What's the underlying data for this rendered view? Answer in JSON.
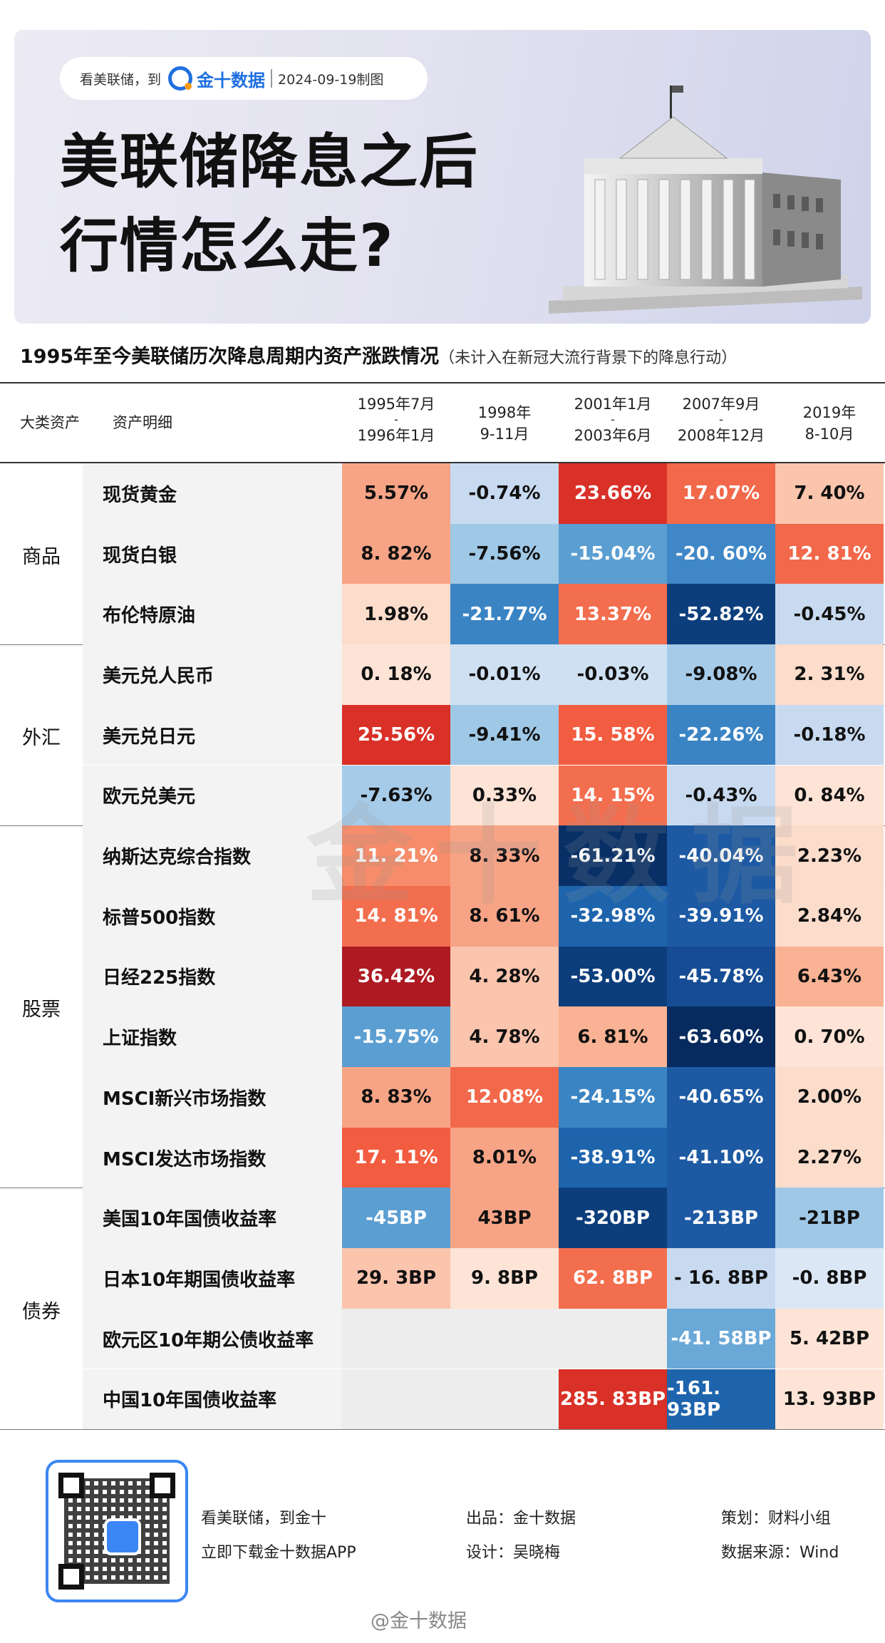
{
  "header": {
    "pill_text": "看美联储，到",
    "brand": "金十数据",
    "date": "2024-09-19制图",
    "title_line1": "美联储降息之后",
    "title_line2": "行情怎么走?"
  },
  "subtitle": {
    "main": "1995年至今美联储历次降息周期内资产涨跌情况",
    "note": "（未计入在新冠大流行背景下的降息行动）"
  },
  "table_headers": {
    "asset_class": "大类资产",
    "asset_detail": "资产明细",
    "periods": [
      {
        "top": "1995年7月",
        "dash": "-",
        "bottom": "1996年1月"
      },
      {
        "top": "1998年",
        "dash": "",
        "bottom": "9-11月"
      },
      {
        "top": "2001年1月",
        "dash": "-",
        "bottom": "2003年6月"
      },
      {
        "top": "2007年9月",
        "dash": "-",
        "bottom": "2008年12月"
      },
      {
        "top": "2019年",
        "dash": "",
        "bottom": "8-10月"
      }
    ]
  },
  "chart_data": {
    "type": "table",
    "title": "1995年至今美联储历次降息周期内资产涨跌情况",
    "columns": [
      "1995年7月-1996年1月",
      "1998年9-11月",
      "2001年1月-2003年6月",
      "2007年9月-2008年12月",
      "2019年8-10月"
    ],
    "groups": [
      {
        "category": "商品",
        "rows": [
          {
            "label": "现货黄金",
            "values": [
              "5.57%",
              "-0.74%",
              "23.66%",
              "17.07%",
              "7. 40%"
            ],
            "colors": [
              "#f7a486",
              "#c8daf0",
              "#d93027",
              "#f2684a",
              "#fbc4ad"
            ]
          },
          {
            "label": "现货白银",
            "values": [
              "8. 82%",
              "-7.56%",
              "-15.04%",
              "-20. 60%",
              "12. 81%"
            ],
            "colors": [
              "#f7a486",
              "#9fc8e6",
              "#5b9ed2",
              "#3f87c7",
              "#f2684a"
            ]
          },
          {
            "label": "布伦特原油",
            "values": [
              "1.98%",
              "-21.77%",
              "13.37%",
              "-52.82%",
              "-0.45%"
            ],
            "colors": [
              "#fcdccb",
              "#3a84c4",
              "#f36e4e",
              "#0d3e7c",
              "#c8daf0"
            ]
          }
        ]
      },
      {
        "category": "外汇",
        "rows": [
          {
            "label": "美元兑人民币",
            "values": [
              "0. 18%",
              "-0.01%",
              "-0.03%",
              "-9.08%",
              "2. 31%"
            ],
            "colors": [
              "#fde4d6",
              "#cfe0f2",
              "#cfe0f2",
              "#a6cbe8",
              "#fcdccb"
            ]
          },
          {
            "label": "美元兑日元",
            "values": [
              "25.56%",
              "-9.41%",
              "15. 58%",
              "-22.26%",
              "-0.18%"
            ],
            "colors": [
              "#d93027",
              "#9fc8e6",
              "#f25c40",
              "#3a84c4",
              "#c8daf0"
            ]
          },
          {
            "label": "欧元兑美元",
            "values": [
              "-7.63%",
              "0.33%",
              "14. 15%",
              "-0.43%",
              "0. 84%"
            ],
            "colors": [
              "#a6cbe8",
              "#fde4d6",
              "#f36e4e",
              "#c8daf0",
              "#fde4d6"
            ]
          }
        ]
      },
      {
        "category": "股票",
        "rows": [
          {
            "label": "纳斯达克综合指数",
            "values": [
              "11. 21%",
              "8. 33%",
              "-61.21%",
              "-40.04%",
              "2.23%"
            ],
            "colors": [
              "#f68c6a",
              "#f7a486",
              "#083067",
              "#1d5aa3",
              "#fcdccb"
            ]
          },
          {
            "label": "标普500指数",
            "values": [
              "14. 81%",
              "8. 61%",
              "-32.98%",
              "-39.91%",
              "2.84%"
            ],
            "colors": [
              "#f36e4e",
              "#f7a486",
              "#1e64ad",
              "#1d5aa3",
              "#fcdccb"
            ]
          },
          {
            "label": "日经225指数",
            "values": [
              "36.42%",
              "4. 28%",
              "-53.00%",
              "-45.78%",
              "6.43%"
            ],
            "colors": [
              "#ad1a22",
              "#fbc4ad",
              "#0d3e7c",
              "#164c94",
              "#f9b293"
            ]
          },
          {
            "label": "上证指数",
            "values": [
              "-15.75%",
              "4. 78%",
              "6. 81%",
              "-63.60%",
              "0. 70%"
            ],
            "colors": [
              "#5b9ed2",
              "#fbc4ad",
              "#f9b293",
              "#072b5e",
              "#fde4d6"
            ]
          },
          {
            "label": "MSCI新兴市场指数",
            "values": [
              "8. 83%",
              "12.08%",
              "-24.15%",
              "-40.65%",
              "2.00%"
            ],
            "colors": [
              "#f7a486",
              "#f2684a",
              "#3a84c4",
              "#1d5aa3",
              "#fcdccb"
            ]
          },
          {
            "label": "MSCI发达市场指数",
            "values": [
              "17. 11%",
              "8.01%",
              "-38.91%",
              "-41.10%",
              "2.27%"
            ],
            "colors": [
              "#f25c40",
              "#f7a486",
              "#1e64ad",
              "#1d5aa3",
              "#fcdccb"
            ]
          }
        ]
      },
      {
        "category": "债券",
        "rows": [
          {
            "label": "美国10年国债收益率",
            "values": [
              "-45BP",
              "43BP",
              "-320BP",
              "-213BP",
              "-21BP"
            ],
            "colors": [
              "#5b9ed2",
              "#f7a486",
              "#0d3e7c",
              "#1d5aa3",
              "#9fc8e6"
            ]
          },
          {
            "label": "日本10年期国债收益率",
            "values": [
              "29. 3BP",
              "9. 8BP",
              "62. 8BP",
              "- 16. 8BP",
              "-0. 8BP"
            ],
            "colors": [
              "#fbc4ad",
              "#fde4d6",
              "#f36e4e",
              "#c8daf0",
              "#dbe7f5"
            ]
          },
          {
            "label": "欧元区10年期公债收益率",
            "values": [
              "",
              "",
              "",
              "-41. 58BP",
              "5. 42BP"
            ],
            "colors": [
              "",
              "",
              "",
              "#6aa8d8",
              "#fde4d6"
            ]
          },
          {
            "label": "中国10年国债收益率",
            "values": [
              "",
              "",
              "285. 83BP",
              "-161. 93BP",
              "13. 93BP"
            ],
            "colors": [
              "",
              "",
              "#d93027",
              "#1e64ad",
              "#fde4d6"
            ]
          }
        ]
      }
    ]
  },
  "watermark": "金十数据",
  "footer": {
    "slogan1": "看美联储，到金十",
    "slogan2": "立即下载金十数据APP",
    "producer": "出品：金十数据",
    "designer": "设计：吴晓梅",
    "planner": "策划：财料小组",
    "source": "数据来源：Wind",
    "weibo": "@金十数据"
  }
}
